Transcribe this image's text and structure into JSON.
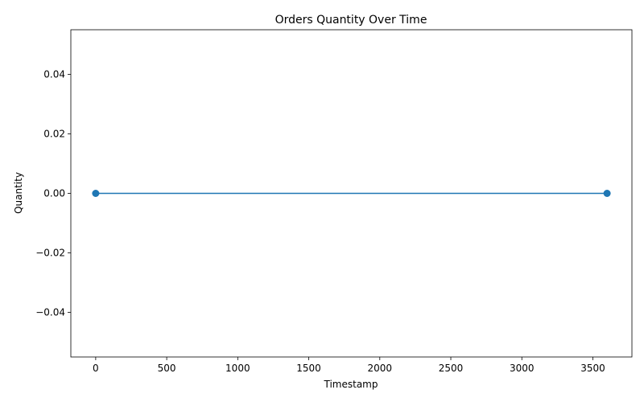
{
  "chart_data": {
    "type": "line",
    "title": "Orders Quantity Over Time",
    "xlabel": "Timestamp",
    "ylabel": "Quantity",
    "xlim": [
      -175,
      3775
    ],
    "ylim": [
      -0.055,
      0.055
    ],
    "x_ticks": [
      0,
      500,
      1000,
      1500,
      2000,
      2500,
      3000,
      3500
    ],
    "x_tick_labels": [
      "0",
      "500",
      "1000",
      "1500",
      "2000",
      "2500",
      "3000",
      "3500"
    ],
    "y_ticks": [
      -0.04,
      -0.02,
      0.0,
      0.02,
      0.04
    ],
    "y_tick_labels": [
      "−0.04",
      "−0.02",
      "0.00",
      "0.02",
      "0.04"
    ],
    "grid": false,
    "series": [
      {
        "color": "#1f77b4",
        "marker": "circle",
        "x": [
          0,
          3600
        ],
        "y": [
          0,
          0
        ]
      }
    ]
  }
}
